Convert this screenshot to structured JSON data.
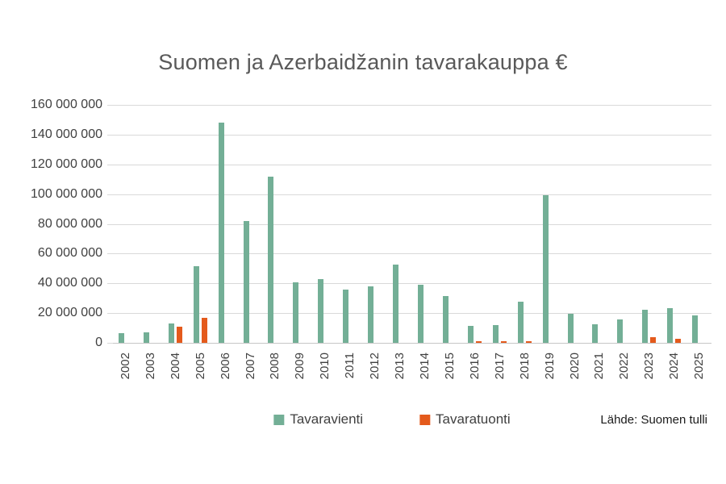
{
  "title": "Suomen ja Azerbaidžanin tavarakauppa €",
  "source": {
    "label": "Lähde: Suomen tulli"
  },
  "colors": {
    "export_green": "#73af96",
    "import_orange": "#e45a1c",
    "gridline": "#d9d9d9",
    "axis_line": "#c6c6c6",
    "title_text": "#595959",
    "axis_text": "#404040"
  },
  "y_axis": {
    "tick_labels": [
      "160 000 000",
      "140 000 000",
      "120 000 000",
      "100 000 000",
      "80 000 000",
      "60 000 000",
      "40 000 000",
      "20 000 000",
      "0"
    ]
  },
  "chart_data": {
    "type": "bar",
    "title": "Suomen ja Azerbaidžanin tavarakauppa €",
    "categories": [
      "2002",
      "2003",
      "2004",
      "2005",
      "2006",
      "2007",
      "2008",
      "2009",
      "2010",
      "2011",
      "2012",
      "2013",
      "2014",
      "2015",
      "2016",
      "2017",
      "2018",
      "2019",
      "2020",
      "2021",
      "2022",
      "2023",
      "2024",
      "2025"
    ],
    "series": [
      {
        "name": "Tavaravienti",
        "color": "#73af96",
        "values": [
          6500000,
          7000000,
          13000000,
          51500000,
          148000000,
          82000000,
          112000000,
          40500000,
          43000000,
          36000000,
          38000000,
          52500000,
          39000000,
          31500000,
          11500000,
          12000000,
          27500000,
          99000000,
          19500000,
          12500000,
          16000000,
          22000000,
          23500000,
          18500000
        ]
      },
      {
        "name": "Tavaratuonti",
        "color": "#e45a1c",
        "values": [
          0,
          0,
          11000000,
          17000000,
          0,
          0,
          0,
          0,
          0,
          0,
          0,
          0,
          0,
          0,
          1200000,
          1200000,
          1200000,
          0,
          0,
          0,
          0,
          4000000,
          2500000,
          0
        ]
      }
    ],
    "xlabel": "",
    "ylabel": "",
    "ylim": [
      0,
      160000000
    ],
    "ytick_step": 20000000,
    "grid": true,
    "legend_position": "bottom"
  }
}
